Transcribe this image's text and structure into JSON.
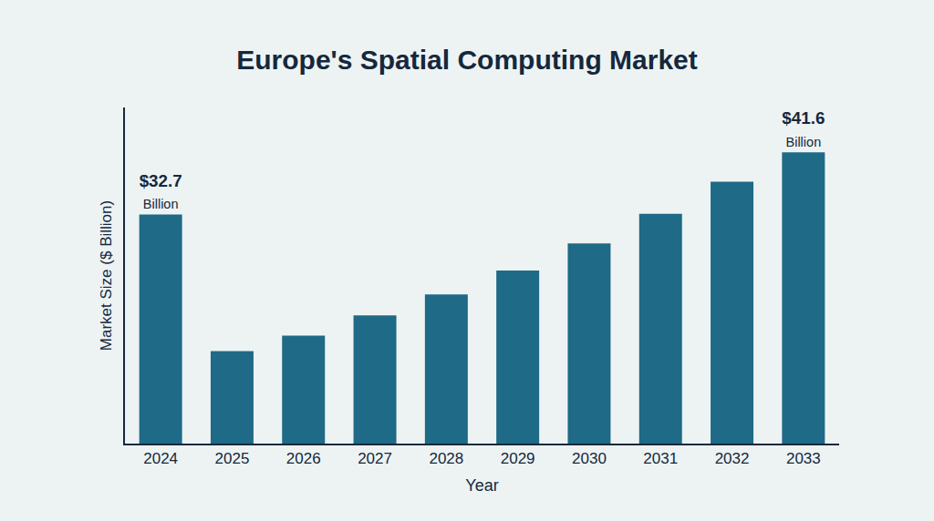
{
  "chart_data": {
    "type": "bar",
    "title": "Europe's Spatial Computing Market",
    "x_label": "Year",
    "y_label": "Market Size ($ Billion)",
    "categories": [
      "2024",
      "2025",
      "2026",
      "2027",
      "2028",
      "2029",
      "2030",
      "2031",
      "2032",
      "2033"
    ],
    "values": [
      32.7,
      13.2,
      15.4,
      18.3,
      21.3,
      24.7,
      28.6,
      32.8,
      37.4,
      41.6
    ],
    "value_labels": [
      "$32.7 Billion",
      null,
      null,
      null,
      null,
      null,
      null,
      null,
      null,
      "$41.6 Billion"
    ],
    "data_labels": true,
    "color": "#1e6a87",
    "ylim": [
      0,
      48
    ],
    "tick_labels": "x",
    "grid": false
  }
}
